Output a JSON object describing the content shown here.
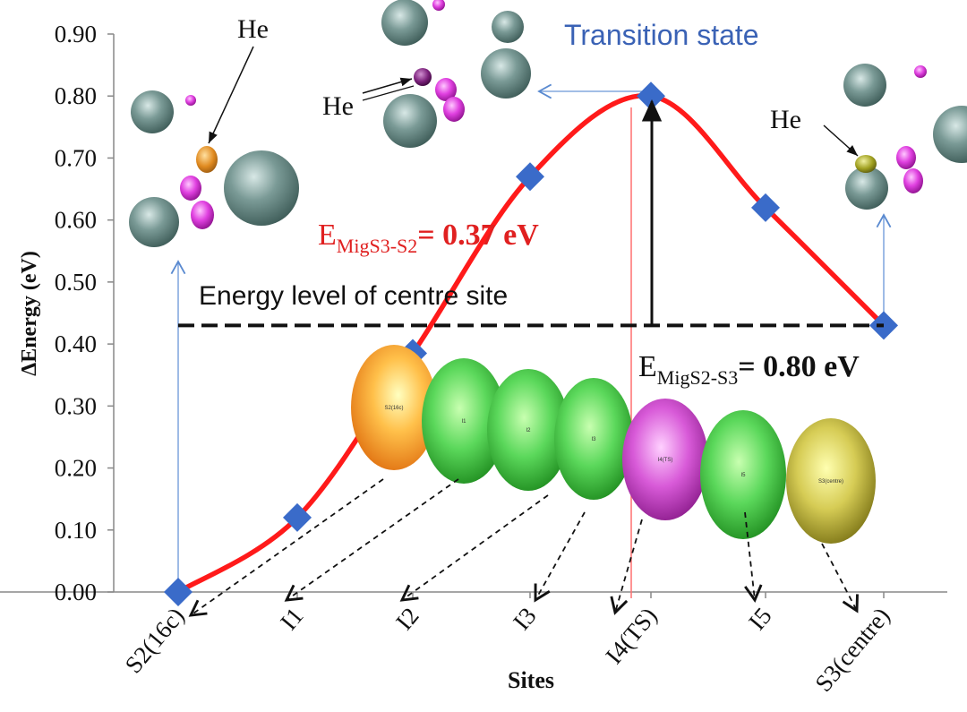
{
  "chart_data": {
    "type": "line",
    "ylabel": "ΔEnergy (eV)",
    "xlabel": "Sites",
    "ylim": [
      0,
      0.9
    ],
    "yticks": [
      "0.00",
      "0.10",
      "0.20",
      "0.30",
      "0.40",
      "0.50",
      "0.60",
      "0.70",
      "0.80",
      "0.90"
    ],
    "categories": [
      "S2(16c)",
      "I1",
      "I2",
      "I3",
      "I4(TS)",
      "I5",
      "S3(centre)"
    ],
    "series": [
      {
        "values": [
          0.0,
          0.12,
          0.385,
          0.67,
          0.8,
          0.62,
          0.43
        ],
        "color": "#ff1a1a",
        "marker_color": "#3a6bc9"
      }
    ],
    "reference_line": {
      "value": 0.43,
      "label": "Energy level of centre site"
    },
    "annotations": {
      "transition_state": "Transition state",
      "he_label": "He",
      "e_mig_s3_s2": {
        "prefix": "E",
        "sub": "MigS3-S2",
        "value": "= 0.37 eV",
        "color": "#e02020"
      },
      "e_mig_s2_s3": {
        "prefix": "E",
        "sub": "MigS2-S3",
        "value": "= 0.80 eV",
        "color": "#111111"
      }
    },
    "site_spheres": [
      {
        "label": "S2(16c)",
        "color": "orange"
      },
      {
        "label": "I1",
        "color": "green"
      },
      {
        "label": "I2",
        "color": "green"
      },
      {
        "label": "I3",
        "color": "green"
      },
      {
        "label": "I4(TS)",
        "color": "magenta"
      },
      {
        "label": "I5",
        "color": "green"
      },
      {
        "label": "S3(centre)",
        "color": "olive"
      }
    ]
  }
}
